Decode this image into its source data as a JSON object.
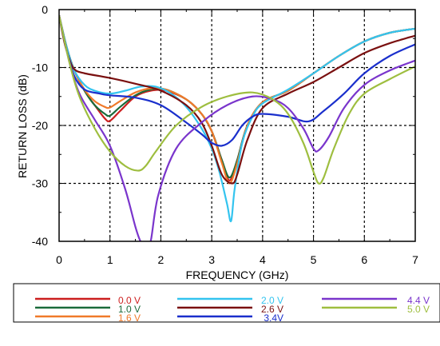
{
  "chart_data": {
    "type": "line",
    "title": "",
    "xlabel": "FREQUENCY (GHz)",
    "ylabel": "RETURN LOSS (dB)",
    "xlim": [
      0,
      7
    ],
    "ylim": [
      -40,
      0
    ],
    "xticks": [
      "0",
      "1",
      "2",
      "3",
      "4",
      "5",
      "6",
      "7"
    ],
    "yticks": [
      "0",
      "-10",
      "-20",
      "-30",
      "-40"
    ],
    "grid": true,
    "legend_placement": "bottom",
    "series": [
      {
        "name": "0.0 V",
        "color": "#cc1f1f",
        "x": [
          0.0,
          0.15,
          0.3,
          0.5,
          0.7,
          0.9,
          1.0,
          1.2,
          1.5,
          1.8,
          2.1,
          2.5,
          2.8,
          3.0,
          3.2,
          3.35,
          3.5,
          3.7,
          4.0,
          4.5,
          5.0,
          5.5,
          6.0,
          6.5,
          7.0
        ],
        "y": [
          -1.0,
          -6.5,
          -10.5,
          -14.0,
          -16.5,
          -18.8,
          -19.2,
          -17.5,
          -15.0,
          -14.0,
          -14.0,
          -15.5,
          -18.0,
          -21.0,
          -26.0,
          -29.5,
          -26.0,
          -20.0,
          -16.0,
          -14.0,
          -11.0,
          -8.0,
          -5.5,
          -4.0,
          -3.3
        ]
      },
      {
        "name": "1.0 V",
        "color": "#1a6b3a",
        "x": [
          0.0,
          0.15,
          0.3,
          0.5,
          0.7,
          0.9,
          1.0,
          1.2,
          1.5,
          1.8,
          2.1,
          2.5,
          2.8,
          3.0,
          3.2,
          3.35,
          3.5,
          3.7,
          4.0,
          4.5,
          5.0,
          5.5,
          6.0,
          6.5,
          7.0
        ],
        "y": [
          -1.0,
          -6.5,
          -10.5,
          -14.0,
          -16.5,
          -18.0,
          -18.3,
          -16.8,
          -14.8,
          -13.8,
          -13.8,
          -15.5,
          -18.0,
          -21.0,
          -26.0,
          -29.0,
          -26.0,
          -20.0,
          -16.0,
          -14.0,
          -11.0,
          -8.0,
          -5.5,
          -4.0,
          -3.3
        ]
      },
      {
        "name": "1.6 V",
        "color": "#f07a2a",
        "x": [
          0.0,
          0.15,
          0.3,
          0.5,
          0.7,
          0.9,
          1.0,
          1.2,
          1.5,
          1.8,
          2.1,
          2.5,
          2.8,
          3.0,
          3.2,
          3.35,
          3.5,
          3.7,
          4.0,
          4.5,
          5.0,
          5.5,
          6.0,
          6.5,
          7.0
        ],
        "y": [
          -1.0,
          -6.5,
          -10.5,
          -13.8,
          -15.8,
          -16.8,
          -16.9,
          -15.8,
          -14.3,
          -13.6,
          -13.8,
          -15.5,
          -18.0,
          -21.0,
          -26.5,
          -30.0,
          -26.5,
          -20.0,
          -16.0,
          -14.0,
          -11.0,
          -8.0,
          -5.5,
          -4.0,
          -3.3
        ]
      },
      {
        "name": "2.0 V",
        "color": "#33c4ef",
        "x": [
          0.0,
          0.15,
          0.3,
          0.5,
          0.7,
          1.0,
          1.3,
          1.6,
          1.9,
          2.2,
          2.5,
          2.8,
          3.0,
          3.15,
          3.3,
          3.38,
          3.45,
          3.6,
          3.8,
          4.0,
          4.5,
          5.0,
          5.5,
          6.0,
          6.5,
          7.0
        ],
        "y": [
          -1.0,
          -6.5,
          -10.5,
          -13.0,
          -14.0,
          -14.5,
          -14.0,
          -13.3,
          -13.3,
          -14.5,
          -16.8,
          -20.5,
          -24.0,
          -28.0,
          -33.5,
          -36.5,
          -31.0,
          -23.0,
          -18.5,
          -16.2,
          -13.8,
          -11.0,
          -8.0,
          -5.5,
          -4.0,
          -3.3
        ]
      },
      {
        "name": "2.6 V",
        "color": "#7a1010",
        "x": [
          0.0,
          0.1,
          0.2,
          0.3,
          0.5,
          1.0,
          1.5,
          2.0,
          2.5,
          2.8,
          3.0,
          3.2,
          3.4,
          3.5,
          3.7,
          4.0,
          4.5,
          5.0,
          5.5,
          6.0,
          6.5,
          7.0
        ],
        "y": [
          -1.0,
          -5.5,
          -8.5,
          -10.3,
          -11.0,
          -11.8,
          -12.8,
          -14.0,
          -16.5,
          -19.5,
          -23.5,
          -28.5,
          -30.0,
          -28.5,
          -22.5,
          -17.0,
          -14.5,
          -12.5,
          -10.0,
          -7.5,
          -5.8,
          -4.5
        ]
      },
      {
        "name": "3.4V",
        "color": "#1a2fcc",
        "x": [
          0.0,
          0.15,
          0.3,
          0.5,
          0.8,
          1.0,
          1.5,
          2.0,
          2.5,
          2.8,
          3.0,
          3.2,
          3.4,
          3.6,
          3.8,
          4.0,
          4.5,
          4.9,
          5.2,
          5.6,
          6.0,
          6.5,
          7.0
        ],
        "y": [
          -1.0,
          -7.0,
          -11.5,
          -13.8,
          -14.5,
          -14.8,
          -15.2,
          -16.5,
          -19.5,
          -21.5,
          -23.0,
          -23.5,
          -22.5,
          -20.0,
          -18.5,
          -18.0,
          -18.5,
          -19.3,
          -17.5,
          -14.5,
          -11.0,
          -8.0,
          -6.0
        ]
      },
      {
        "name": "4.4 V",
        "color": "#7a35cc",
        "x": [
          0.0,
          0.2,
          0.4,
          0.7,
          1.0,
          1.3,
          1.5,
          1.6,
          1.7,
          1.8,
          1.95,
          2.3,
          2.8,
          3.3,
          3.8,
          4.2,
          4.5,
          4.8,
          5.0,
          5.1,
          5.3,
          5.6,
          6.0,
          6.5,
          7.0
        ],
        "y": [
          -1.0,
          -9.0,
          -14.5,
          -19.0,
          -23.5,
          -31.0,
          -37.5,
          -40.0,
          -41.0,
          -40.0,
          -32.0,
          -24.0,
          -19.5,
          -16.5,
          -15.0,
          -15.5,
          -17.0,
          -20.5,
          -24.0,
          -24.3,
          -22.0,
          -17.0,
          -13.0,
          -10.5,
          -8.8
        ]
      },
      {
        "name": "5.0 V",
        "color": "#9ebe3f",
        "x": [
          0.0,
          0.2,
          0.4,
          0.7,
          1.0,
          1.3,
          1.55,
          1.7,
          1.9,
          2.3,
          2.8,
          3.3,
          3.8,
          4.2,
          4.5,
          4.8,
          5.0,
          5.1,
          5.2,
          5.4,
          5.7,
          6.0,
          6.5,
          7.0
        ],
        "y": [
          -1.0,
          -9.0,
          -15.0,
          -20.5,
          -24.5,
          -27.0,
          -27.8,
          -27.0,
          -24.5,
          -20.0,
          -16.8,
          -15.0,
          -14.3,
          -15.5,
          -18.0,
          -23.0,
          -28.0,
          -30.0,
          -29.0,
          -24.0,
          -18.0,
          -14.5,
          -12.0,
          -9.8
        ]
      }
    ]
  }
}
